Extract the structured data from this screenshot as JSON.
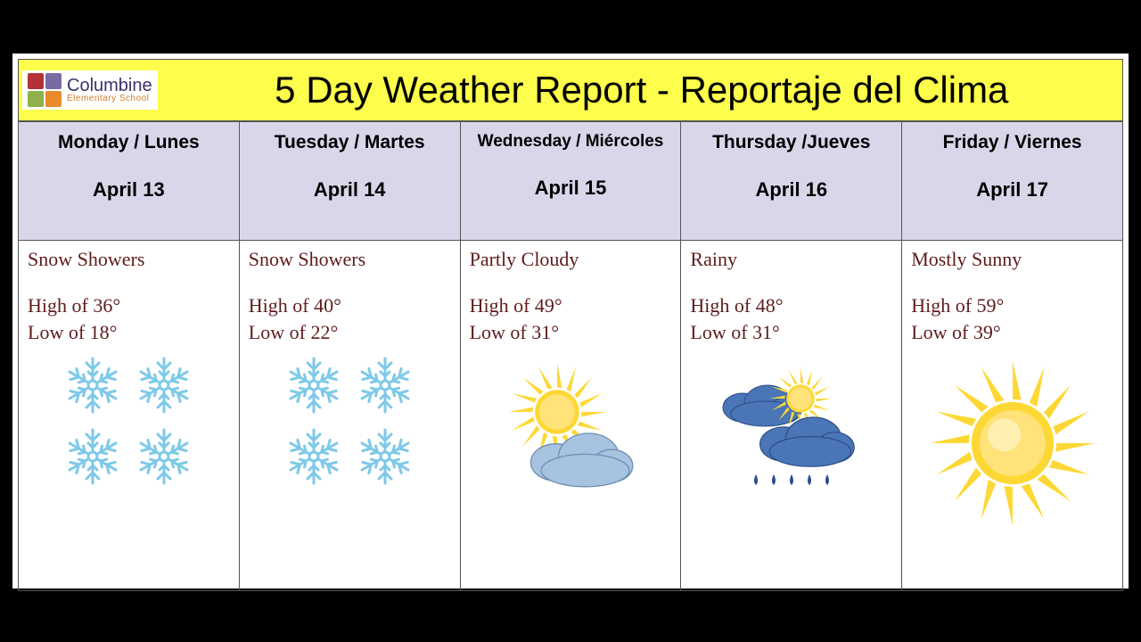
{
  "logo": {
    "line1": "Columbine",
    "line2": "Elementary School"
  },
  "title": "5 Day Weather Report - Reportaje del Clima",
  "colors": {
    "titlebar_bg": "#fdfd4b",
    "header_bg": "#d9d6ea",
    "border": "#555555",
    "text_header": "#000000",
    "text_body": "#5e1b1b",
    "snow_color": "#7ec9e8",
    "sun_ray": "#fdd835",
    "sun_core": "#f9a825",
    "cloud_light": "#a8c3e0",
    "cloud_dark": "#4a76b8",
    "rain": "#2a4d8f"
  },
  "days": [
    {
      "dow": "Monday / Lunes",
      "date": "April 13",
      "condition": "Snow Showers",
      "high": "High of 36°",
      "low": "Low of 18°",
      "icon": "snow"
    },
    {
      "dow": "Tuesday / Martes",
      "date": "April 14",
      "condition": "Snow Showers",
      "high": "High of 40°",
      "low": "Low of 22°",
      "icon": "snow"
    },
    {
      "dow": "Wednesday / Miércoles",
      "date": "April 15",
      "condition": "Partly Cloudy",
      "high": "High of 49°",
      "low": "Low of 31°",
      "icon": "partly"
    },
    {
      "dow": "Thursday /Jueves",
      "date": "April 16",
      "condition": "Rainy",
      "high": "High of 48°",
      "low": "Low of 31°",
      "icon": "rain"
    },
    {
      "dow": "Friday / Viernes",
      "date": "April 17",
      "condition": "Mostly Sunny",
      "high": "High of 59°",
      "low": "Low of 39°",
      "icon": "sun"
    }
  ]
}
